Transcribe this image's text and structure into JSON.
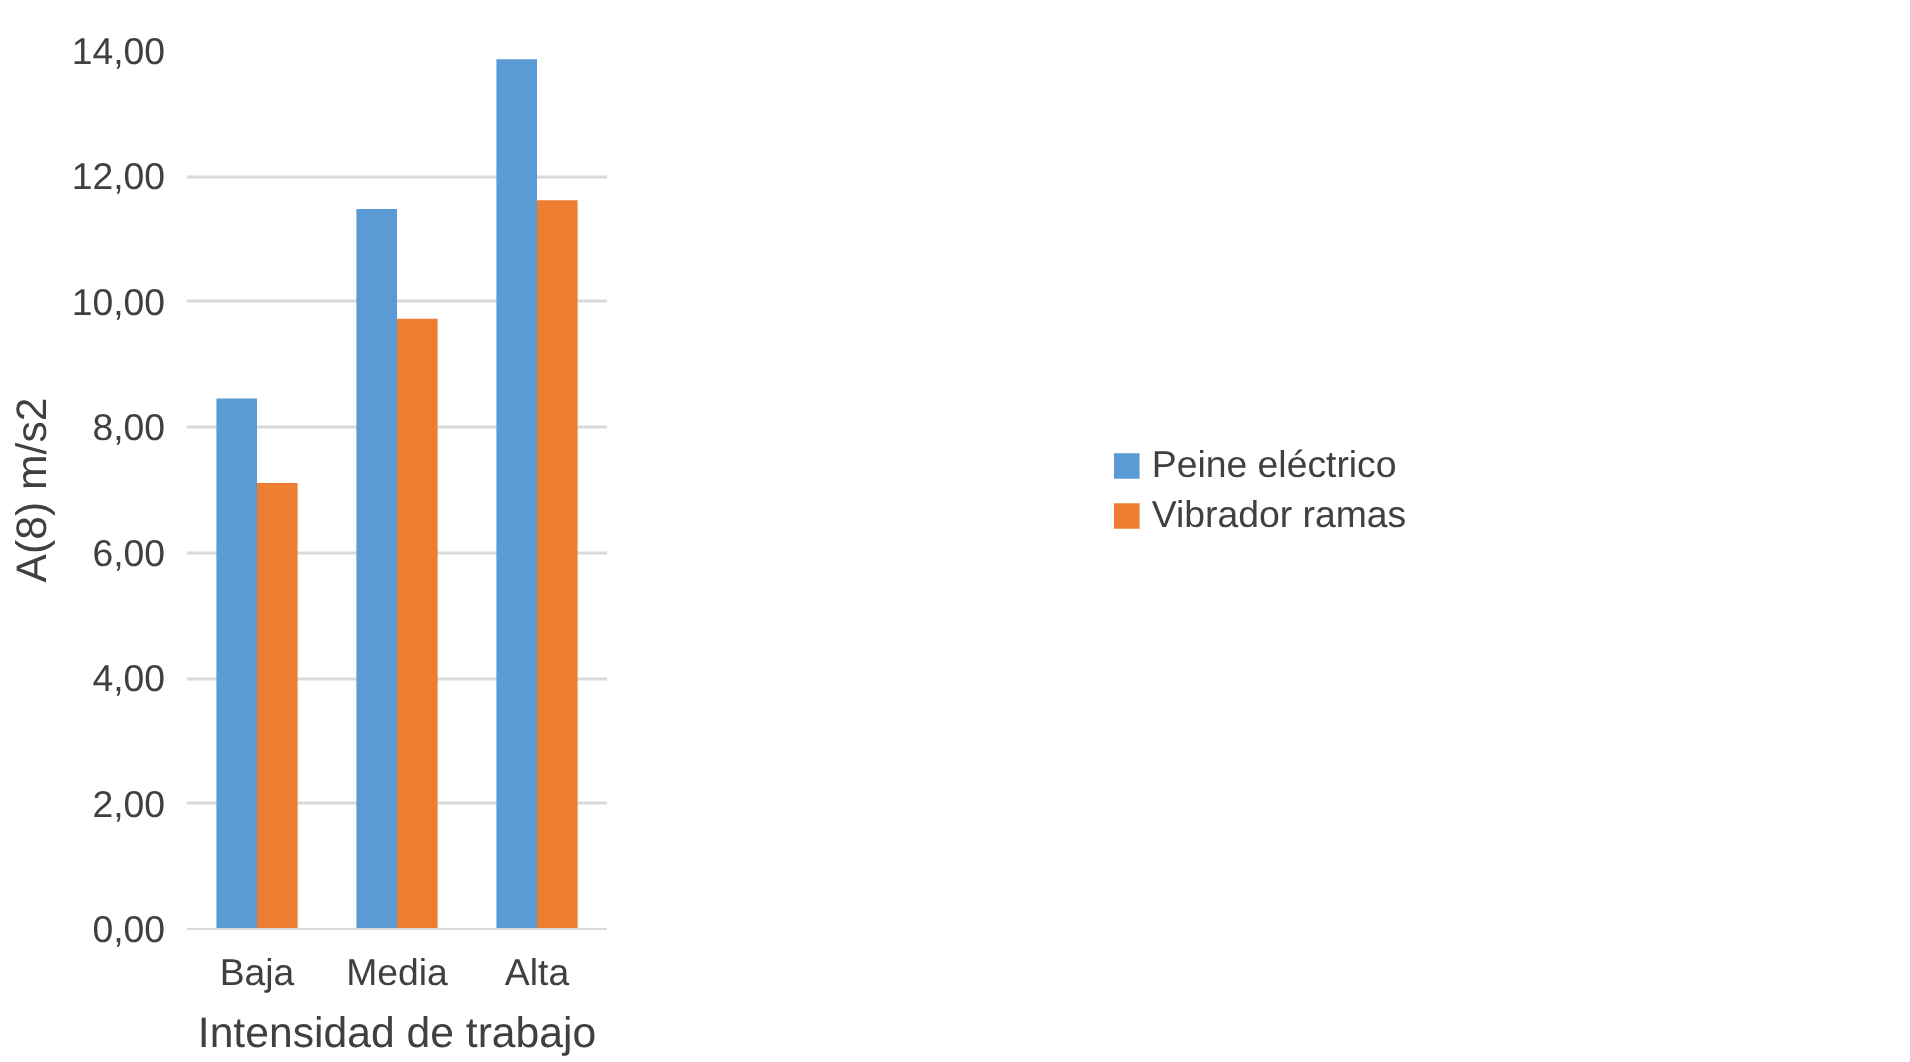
{
  "chart_data": {
    "type": "bar",
    "xlabel": "Intensidad de trabajo",
    "ylabel": "A(8) m/s2",
    "categories": [
      "Baja",
      "Media",
      "Alta"
    ],
    "series": [
      {
        "name": "Peine eléctrico",
        "color": "#5b9bd5",
        "values": [
          8.46,
          11.48,
          13.87
        ]
      },
      {
        "name": "Vibrador ramas",
        "color": "#ed7d31",
        "values": [
          7.11,
          9.73,
          11.62
        ]
      }
    ],
    "ylim": [
      0,
      14
    ],
    "yticks": [
      {
        "value": 0,
        "label": "0,00"
      },
      {
        "value": 2,
        "label": "2,00"
      },
      {
        "value": 4,
        "label": "4,00"
      },
      {
        "value": 6,
        "label": "6,00"
      },
      {
        "value": 8,
        "label": "8,00"
      },
      {
        "value": 10,
        "label": "10,00"
      },
      {
        "value": 12,
        "label": "12,00"
      },
      {
        "value": 14,
        "label": "14,00"
      }
    ],
    "grid": "y",
    "legend": "right"
  }
}
